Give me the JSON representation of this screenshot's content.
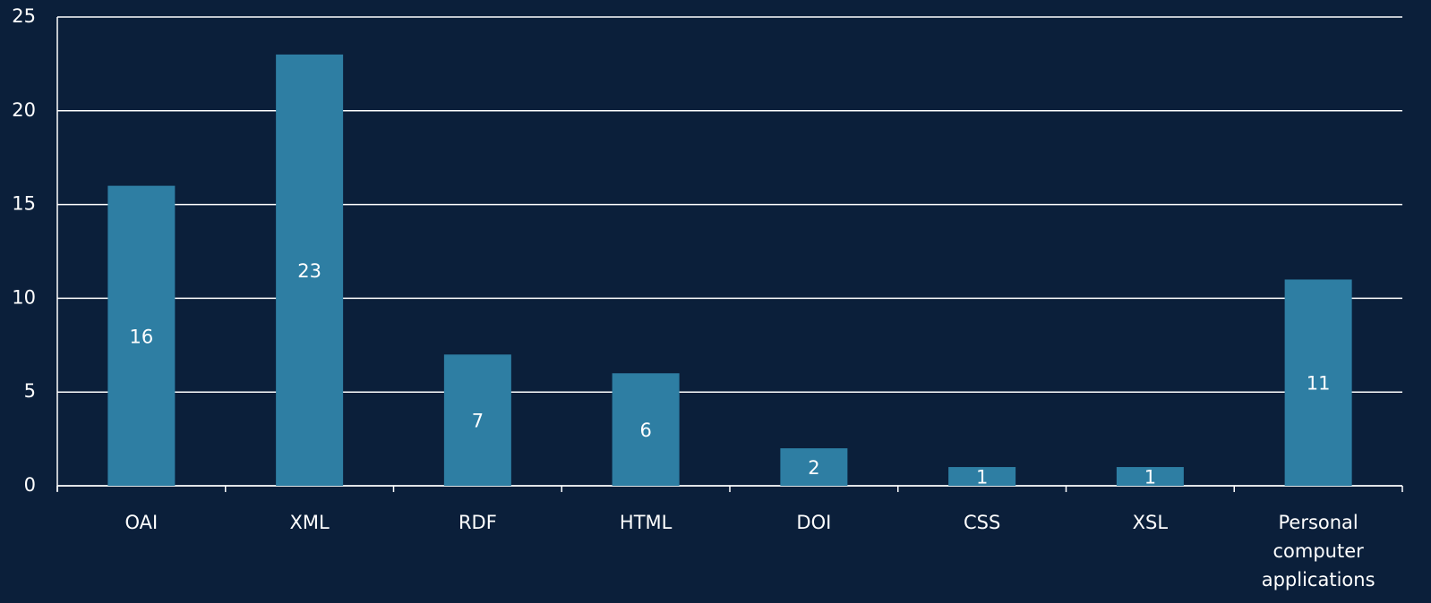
{
  "chart_data": {
    "type": "bar",
    "categories": [
      "OAI",
      "XML",
      "RDF",
      "HTML",
      "DOI",
      "CSS",
      "XSL",
      "Personal computer applications"
    ],
    "values": [
      16,
      23,
      7,
      6,
      2,
      1,
      1,
      11
    ],
    "color": "#2e7ea3",
    "ylim": [
      0,
      25
    ],
    "yticks": [
      0,
      5,
      10,
      15,
      20,
      25
    ],
    "grid": true
  }
}
